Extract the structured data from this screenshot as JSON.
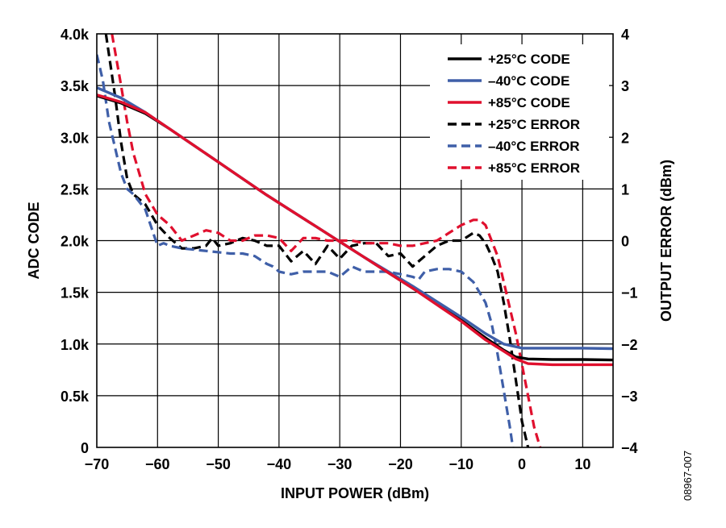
{
  "chart_data": {
    "type": "line",
    "xlabel": "INPUT POWER (dBm)",
    "ylabel": "ADC CODE",
    "y2label": "OUTPUT ERROR (dBm)",
    "xlim": [
      -70,
      15
    ],
    "ylim": [
      0,
      4000
    ],
    "y2lim": [
      -4,
      4
    ],
    "x_ticks": [
      -70,
      -60,
      -50,
      -40,
      -30,
      -20,
      -10,
      0,
      10
    ],
    "x_tick_labels": [
      "−70",
      "−60",
      "−50",
      "−40",
      "−30",
      "−20",
      "−10",
      "0",
      "10"
    ],
    "y_ticks": [
      0,
      500,
      1000,
      1500,
      2000,
      2500,
      3000,
      3500,
      4000
    ],
    "y_tick_labels": [
      "0",
      "0.5k",
      "1.0k",
      "1.5k",
      "2.0k",
      "2.5k",
      "3.0k",
      "3.5k",
      "4.0k"
    ],
    "y2_ticks": [
      -4,
      -3,
      -2,
      -1,
      0,
      1,
      2,
      3,
      4
    ],
    "y2_tick_labels": [
      "−4",
      "−3",
      "−2",
      "−1",
      "0",
      "1",
      "2",
      "3",
      "4"
    ],
    "grid": true,
    "legend_position": "top-right",
    "figure_id": "08967-007",
    "series": [
      {
        "name": "+25°C CODE",
        "axis": "left",
        "color": "#000000",
        "dash": false,
        "x": [
          -70,
          -66,
          -62,
          -58,
          -54,
          -50,
          -46,
          -42,
          -38,
          -34,
          -30,
          -26,
          -22,
          -18,
          -14,
          -10,
          -6,
          -3,
          -1,
          1,
          5,
          10,
          15
        ],
        "y": [
          3400,
          3330,
          3230,
          3080,
          2920,
          2760,
          2600,
          2440,
          2290,
          2140,
          1990,
          1840,
          1690,
          1540,
          1390,
          1230,
          1060,
          940,
          875,
          855,
          850,
          850,
          845
        ]
      },
      {
        "name": "–40°C CODE",
        "axis": "left",
        "color": "#3f5fa8",
        "dash": false,
        "x": [
          -70,
          -66,
          -62,
          -58,
          -54,
          -50,
          -46,
          -42,
          -38,
          -34,
          -30,
          -26,
          -22,
          -18,
          -14,
          -10,
          -6,
          -3,
          0,
          5,
          10,
          15
        ],
        "y": [
          3480,
          3380,
          3240,
          3080,
          2920,
          2760,
          2600,
          2440,
          2290,
          2140,
          1990,
          1840,
          1700,
          1560,
          1410,
          1260,
          1100,
          1000,
          960,
          960,
          960,
          955
        ]
      },
      {
        "name": "+85°C CODE",
        "axis": "left",
        "color": "#e0102e",
        "dash": false,
        "x": [
          -70,
          -66,
          -62,
          -58,
          -54,
          -50,
          -46,
          -42,
          -38,
          -34,
          -30,
          -26,
          -22,
          -18,
          -14,
          -10,
          -6,
          -3,
          -1,
          1,
          5,
          10,
          15
        ],
        "y": [
          3410,
          3340,
          3240,
          3080,
          2920,
          2760,
          2600,
          2440,
          2290,
          2140,
          1990,
          1840,
          1690,
          1540,
          1380,
          1220,
          1040,
          930,
          855,
          810,
          800,
          800,
          800
        ]
      },
      {
        "name": "+25°C ERROR",
        "axis": "right",
        "color": "#000000",
        "dash": true,
        "x": [
          -68.5,
          -67,
          -66,
          -65,
          -64,
          -62,
          -60,
          -58,
          -56,
          -54,
          -52,
          -51,
          -50,
          -48,
          -46,
          -44,
          -42,
          -40,
          -38,
          -36,
          -34,
          -32,
          -30,
          -28,
          -26,
          -24,
          -22,
          -20,
          -18,
          -16,
          -14,
          -12,
          -10,
          -8,
          -7,
          -6,
          -5,
          -4,
          -3,
          -2,
          -1,
          0,
          1
        ],
        "y": [
          4.0,
          2.8,
          1.9,
          1.2,
          0.9,
          0.7,
          0.3,
          0.05,
          -0.15,
          -0.15,
          -0.1,
          0.05,
          -0.1,
          -0.05,
          0.05,
          0.0,
          -0.1,
          -0.1,
          -0.4,
          -0.2,
          -0.45,
          -0.1,
          -0.35,
          -0.1,
          -0.05,
          -0.05,
          -0.3,
          -0.25,
          -0.5,
          -0.3,
          -0.1,
          0.0,
          0.0,
          0.15,
          0.1,
          -0.05,
          -0.3,
          -0.6,
          -1.2,
          -1.9,
          -2.7,
          -3.5,
          -4.0
        ]
      },
      {
        "name": "–40°C ERROR",
        "axis": "right",
        "color": "#3f5fa8",
        "dash": true,
        "x": [
          -70,
          -69,
          -68,
          -67,
          -66,
          -65,
          -64,
          -62,
          -60,
          -59,
          -58,
          -56,
          -52,
          -48,
          -46,
          -44,
          -42,
          -41,
          -40,
          -38,
          -36,
          -32,
          -30,
          -28,
          -26,
          -22,
          -18,
          -17,
          -16,
          -14,
          -12,
          -10,
          -9,
          -8,
          -7,
          -6,
          -5,
          -4,
          -3,
          -2,
          -1.5
        ],
        "y": [
          3.6,
          3.1,
          2.3,
          1.8,
          1.3,
          1.0,
          0.9,
          0.6,
          -0.1,
          -0.05,
          -0.1,
          -0.15,
          -0.2,
          -0.25,
          -0.25,
          -0.3,
          -0.45,
          -0.5,
          -0.6,
          -0.65,
          -0.6,
          -0.6,
          -0.7,
          -0.5,
          -0.6,
          -0.6,
          -0.7,
          -0.75,
          -0.6,
          -0.55,
          -0.55,
          -0.6,
          -0.7,
          -0.8,
          -1.0,
          -1.2,
          -1.6,
          -2.2,
          -2.9,
          -3.6,
          -4.0
        ]
      },
      {
        "name": "+85°C ERROR",
        "axis": "right",
        "color": "#e0102e",
        "dash": true,
        "x": [
          -67.5,
          -66,
          -65,
          -64,
          -62,
          -60,
          -58,
          -56,
          -54,
          -52,
          -50,
          -48,
          -46,
          -44,
          -42,
          -40,
          -38,
          -36,
          -34,
          -32,
          -30,
          -28,
          -26,
          -24,
          -22,
          -20,
          -18,
          -16,
          -14,
          -12,
          -10,
          -8,
          -7,
          -6,
          -5,
          -4,
          -3,
          -2,
          -1,
          0,
          1,
          2,
          3
        ],
        "y": [
          4.0,
          3.0,
          2.3,
          1.7,
          0.9,
          0.5,
          0.3,
          0.0,
          0.1,
          0.2,
          0.15,
          0.0,
          0.0,
          0.1,
          0.1,
          0.05,
          -0.2,
          0.05,
          0.05,
          0.0,
          0.0,
          0.0,
          -0.05,
          -0.05,
          -0.05,
          -0.1,
          -0.1,
          -0.05,
          0.0,
          0.15,
          0.3,
          0.4,
          0.4,
          0.3,
          0.0,
          -0.3,
          -0.8,
          -1.3,
          -1.8,
          -2.4,
          -3.0,
          -3.6,
          -4.0
        ]
      }
    ]
  }
}
